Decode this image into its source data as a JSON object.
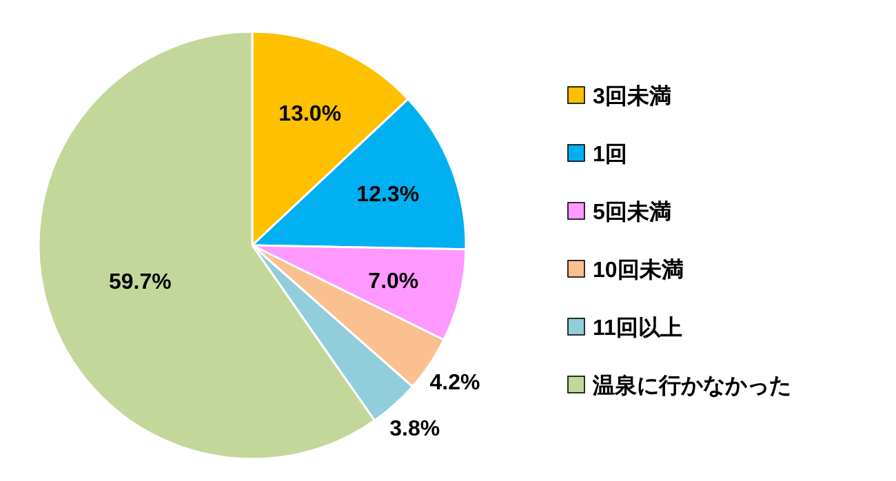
{
  "chart_data": {
    "type": "pie",
    "categories": [
      "3回未満",
      "1回",
      "5回未満",
      "10回未満",
      "11回以上",
      "温泉に行かなかった"
    ],
    "values": [
      13.0,
      12.3,
      7.0,
      4.2,
      3.8,
      59.7
    ],
    "value_labels": [
      "13.0%",
      "12.3%",
      "7.0%",
      "4.2%",
      "3.8%",
      "59.7%"
    ],
    "colors": [
      "#ffc000",
      "#00b0f0",
      "#ff99ff",
      "#fac090",
      "#92cddc",
      "#c4d79b"
    ],
    "legend": "right"
  }
}
